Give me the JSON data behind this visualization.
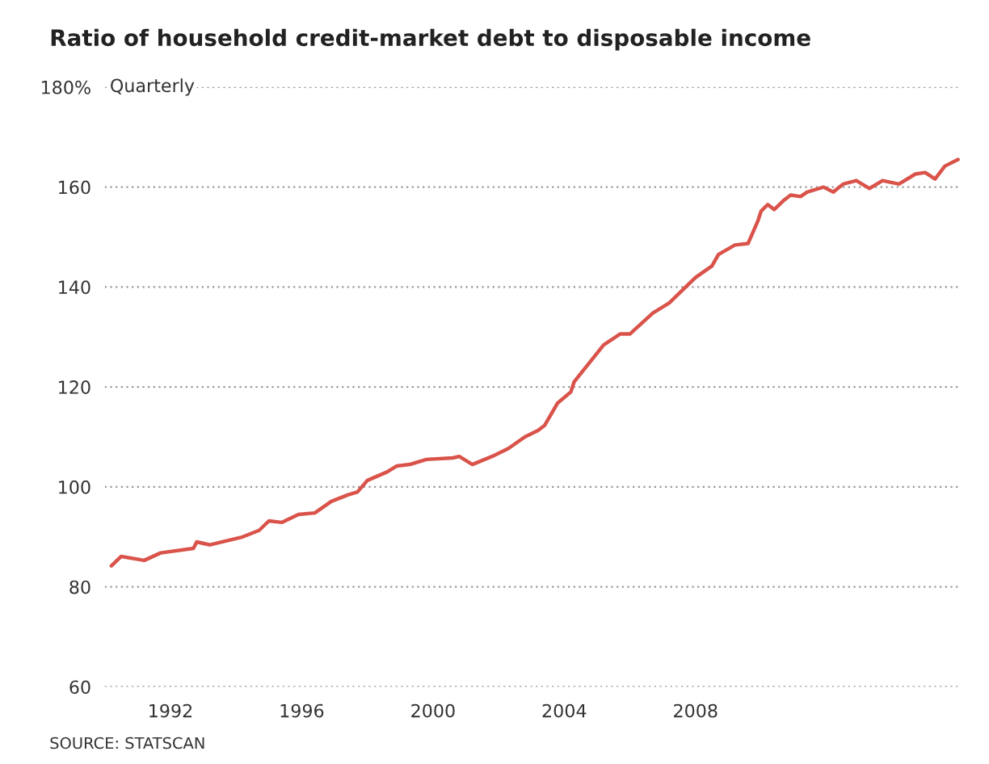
{
  "chart_data": {
    "type": "line",
    "title": "Ratio of household credit-market debt to disposable income",
    "annotations": [
      "Quarterly",
      "SOURCE: STATSCAN"
    ],
    "x": [
      1990.2,
      1990.5,
      1991.2,
      1991.7,
      1992.7,
      1992.8,
      1993.2,
      1994.2,
      1994.7,
      1995.0,
      1995.4,
      1995.9,
      1996.4,
      1996.9,
      1997.4,
      1997.7,
      1998.0,
      1998.6,
      1998.9,
      1999.3,
      1999.8,
      2000.6,
      2000.8,
      2001.2,
      2001.8,
      2002.3,
      2002.8,
      2003.2,
      2003.4,
      2003.8,
      2004.2,
      2004.3,
      2005.2,
      2005.7,
      2006.0,
      2006.7,
      2007.2,
      2007.7,
      2008.0,
      2008.5,
      2008.7,
      2009.2,
      2009.6,
      2009.9,
      2010.0,
      2010.2,
      2010.4,
      2010.7,
      2010.9,
      2011.2,
      2011.4,
      2011.9,
      2012.2,
      2012.5,
      2012.9,
      2013.3,
      2013.7,
      2014.2,
      2014.7,
      2015.0,
      2015.3,
      2015.6,
      2016.0
    ],
    "series": [
      {
        "color": "#d9534a",
        "values": [
          84.2,
          86.1,
          85.3,
          86.8,
          87.7,
          89.0,
          88.4,
          90.0,
          91.3,
          93.2,
          92.9,
          94.5,
          94.8,
          97.1,
          98.4,
          99.0,
          101.3,
          103.0,
          104.2,
          104.5,
          105.5,
          105.8,
          106.1,
          104.5,
          106.1,
          107.7,
          110.0,
          111.3,
          112.3,
          116.8,
          119.0,
          121.0,
          128.4,
          130.6,
          130.6,
          134.8,
          136.8,
          140.0,
          141.9,
          144.2,
          146.5,
          148.4,
          148.7,
          153.2,
          155.2,
          156.5,
          155.5,
          157.4,
          158.4,
          158.1,
          159.0,
          160.0,
          159.0,
          160.6,
          161.3,
          159.7,
          161.3,
          160.6,
          162.6,
          162.9,
          161.6,
          164.2,
          165.5
        ]
      }
    ],
    "xlim": [
      1990,
      2016.1
    ],
    "ylim": [
      60,
      180
    ],
    "xticks": [
      1992,
      1996,
      2000,
      2004,
      2008
    ],
    "yticks": [
      60,
      80,
      100,
      120,
      140,
      160,
      {
        "value": 180,
        "label": "180%"
      }
    ],
    "grid": "y",
    "line_style": "solid",
    "marker": "none"
  }
}
